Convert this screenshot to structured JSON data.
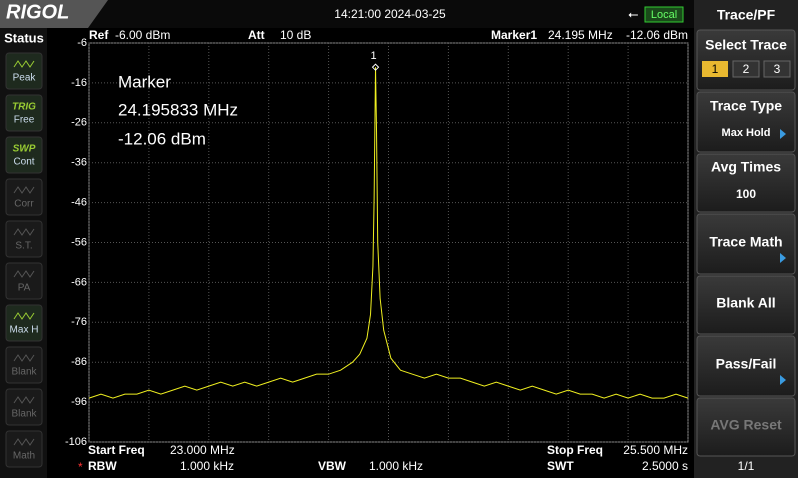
{
  "header": {
    "logo": "RIGOL",
    "datetime": "14:21:00 2024-03-25",
    "remote": "Local"
  },
  "status_panel": {
    "title": "Status",
    "items": [
      {
        "top": null,
        "label": "Peak"
      },
      {
        "top": "TRIG",
        "label": "Free"
      },
      {
        "top": "SWP",
        "label": "Cont"
      },
      {
        "top": null,
        "label": "Corr"
      },
      {
        "top": null,
        "label": "S.T."
      },
      {
        "top": null,
        "label": "PA"
      },
      {
        "top": null,
        "label": "Max H"
      },
      {
        "top": null,
        "label": "Blank"
      },
      {
        "top": null,
        "label": "Blank"
      },
      {
        "top": null,
        "label": "Math"
      }
    ]
  },
  "softkeys": {
    "title": "Trace/PF",
    "select_trace": {
      "label": "Select Trace",
      "options": [
        "1",
        "2",
        "3"
      ]
    },
    "trace_type": {
      "label": "Trace Type",
      "value": "Max Hold"
    },
    "avg_times": {
      "label": "Avg Times",
      "value": "100"
    },
    "trace_math": {
      "label": "Trace Math"
    },
    "blank_all": {
      "label": "Blank All"
    },
    "pass_fail": {
      "label": "Pass/Fail"
    },
    "avg_reset": {
      "label": "AVG Reset"
    },
    "page": "1/1"
  },
  "screen_info": {
    "ref_label": "Ref",
    "ref_value": "-6.00 dBm",
    "att_label": "Att",
    "att_value": "10 dB",
    "marker_label": "Marker1",
    "marker_freq": "24.195 MHz",
    "marker_level": "-12.06 dBm",
    "start_label": "Start Freq",
    "start_value": "23.000 MHz",
    "stop_label": "Stop Freq",
    "stop_value": "25.500 MHz",
    "rbw_flag": "*",
    "rbw_label": "RBW",
    "rbw_value": "1.000 kHz",
    "vbw_label": "VBW",
    "vbw_value": "1.000 kHz",
    "swt_label": "SWT",
    "swt_value": "2.5000 s"
  },
  "chart_data": {
    "type": "line",
    "annotation": [
      "Marker",
      "24.195833 MHz",
      "-12.06 dBm"
    ],
    "marker": {
      "label": "1",
      "x": 24.195833,
      "y": -12.06
    },
    "xlim": [
      23,
      25.5
    ],
    "xticks": [
      23,
      23.25,
      23.5,
      23.75,
      24,
      24.25,
      24.5,
      24.75,
      25,
      25.25,
      25.5
    ],
    "ylim": [
      -106,
      -6
    ],
    "yticks": [
      -6,
      -16,
      -26,
      -36,
      -46,
      -56,
      -66,
      -76,
      -86,
      -96,
      -106
    ],
    "grid": true,
    "x": [
      23.0,
      23.05,
      23.1,
      23.15,
      23.2,
      23.25,
      23.3,
      23.35,
      23.4,
      23.45,
      23.5,
      23.55,
      23.6,
      23.65,
      23.7,
      23.75,
      23.8,
      23.85,
      23.9,
      23.95,
      24.0,
      24.05,
      24.1,
      24.13,
      24.16,
      24.175,
      24.185,
      24.19,
      24.195833,
      24.2,
      24.205,
      24.215,
      24.23,
      24.26,
      24.3,
      24.35,
      24.4,
      24.45,
      24.5,
      24.55,
      24.6,
      24.65,
      24.7,
      24.75,
      24.8,
      24.85,
      24.9,
      24.95,
      25.0,
      25.05,
      25.1,
      25.15,
      25.2,
      25.25,
      25.3,
      25.35,
      25.4,
      25.45,
      25.5
    ],
    "series": [
      {
        "name": null,
        "color": "#f0f020",
        "values": [
          -95,
          -94,
          -95,
          -94,
          -94,
          -93,
          -94,
          -93,
          -92,
          -93,
          -92,
          -91,
          -92,
          -91,
          -92,
          -91,
          -90,
          -91,
          -90,
          -89,
          -89,
          -88,
          -86,
          -84,
          -80,
          -74,
          -62,
          -45,
          -12.06,
          -28,
          -56,
          -70,
          -78,
          -85,
          -88,
          -89,
          -90,
          -89,
          -90,
          -90,
          -91,
          -92,
          -91,
          -92,
          -93,
          -92,
          -93,
          -94,
          -93,
          -94,
          -94,
          -95,
          -94,
          -95,
          -94,
          -95,
          -95,
          -94,
          -95
        ]
      }
    ]
  }
}
